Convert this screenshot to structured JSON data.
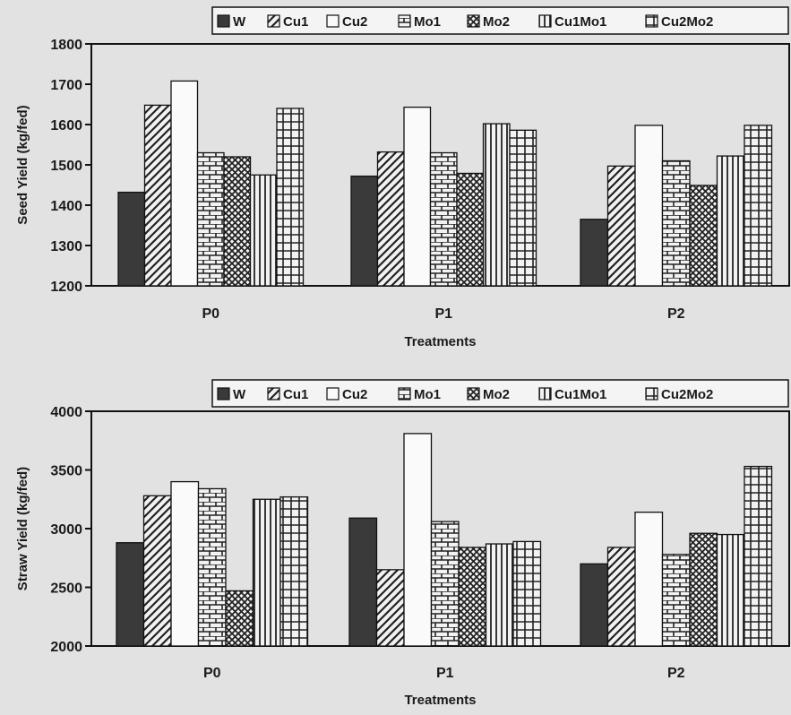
{
  "chart_data": [
    {
      "type": "bar",
      "categories": [
        "P0",
        "P1",
        "P2"
      ],
      "xlabel": "Treatments",
      "ylabel": "Seed Yield (kg/fed)",
      "ylim": [
        1200,
        1800
      ],
      "yticks": [
        1200,
        1300,
        1400,
        1500,
        1600,
        1700,
        1800
      ],
      "legend_position": "top",
      "series": [
        {
          "name": "W",
          "pattern": "solid",
          "values": [
            1432,
            1472,
            1365
          ]
        },
        {
          "name": "Cu1",
          "pattern": "diagonal",
          "values": [
            1648,
            1532,
            1497
          ]
        },
        {
          "name": "Cu2",
          "pattern": "empty",
          "values": [
            1708,
            1643,
            1598
          ]
        },
        {
          "name": "Mo1",
          "pattern": "brick",
          "values": [
            1530,
            1530,
            1510
          ]
        },
        {
          "name": "Mo2",
          "pattern": "crosshatch",
          "values": [
            1520,
            1479,
            1449
          ]
        },
        {
          "name": "Cu1Mo1",
          "pattern": "vertical",
          "values": [
            1475,
            1602,
            1522
          ]
        },
        {
          "name": "Cu2Mo2",
          "pattern": "grid",
          "values": [
            1640,
            1586,
            1598
          ]
        }
      ]
    },
    {
      "type": "bar",
      "categories": [
        "P0",
        "P1",
        "P2"
      ],
      "xlabel": "Treatments",
      "ylabel": "Straw Yield (kg/fed)",
      "ylim": [
        2000,
        4000
      ],
      "yticks": [
        2000,
        2500,
        3000,
        3500,
        4000
      ],
      "legend_position": "top",
      "series": [
        {
          "name": "W",
          "pattern": "solid",
          "values": [
            2880,
            3090,
            2700
          ]
        },
        {
          "name": "Cu1",
          "pattern": "diagonal",
          "values": [
            3280,
            2650,
            2840
          ]
        },
        {
          "name": "Cu2",
          "pattern": "empty",
          "values": [
            3400,
            3810,
            3140
          ]
        },
        {
          "name": "Mo1",
          "pattern": "brick",
          "values": [
            3340,
            3060,
            2780
          ]
        },
        {
          "name": "Mo2",
          "pattern": "crosshatch",
          "values": [
            2470,
            2840,
            2960
          ]
        },
        {
          "name": "Cu1Mo1",
          "pattern": "vertical",
          "values": [
            3250,
            2870,
            2950
          ]
        },
        {
          "name": "Cu2Mo2",
          "pattern": "grid",
          "values": [
            3270,
            2890,
            3530
          ]
        }
      ]
    }
  ]
}
